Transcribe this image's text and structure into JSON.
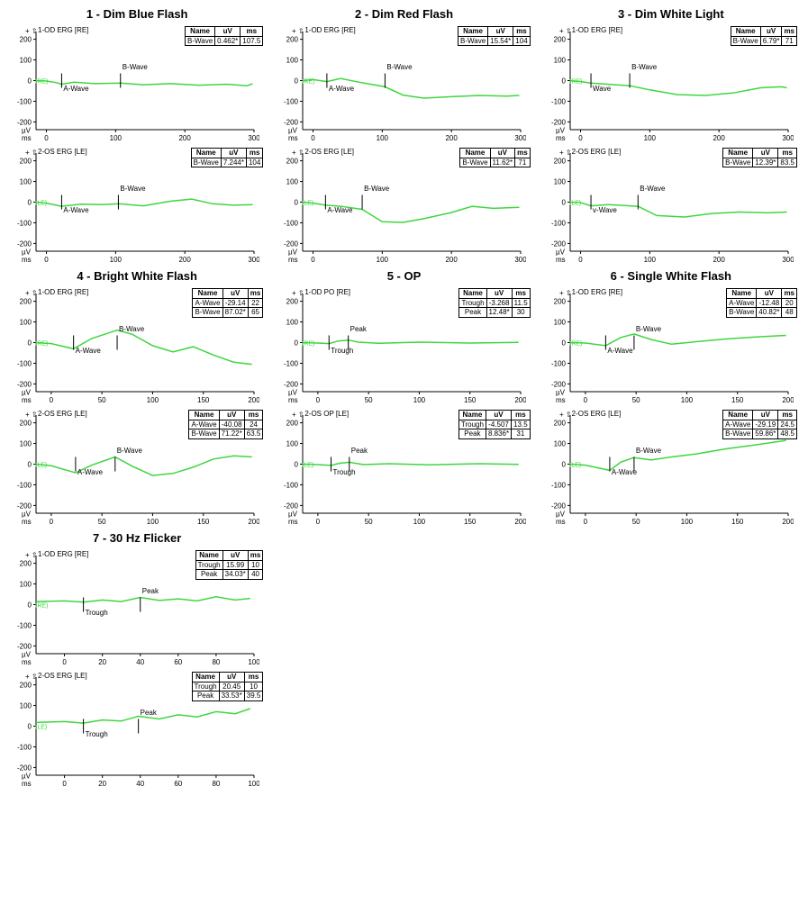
{
  "styling": {
    "waveform_color": "#3fd63f",
    "axis_color": "#000000",
    "background_color": "#ffffff",
    "title_fontsize": 13,
    "label_fontsize": 8,
    "legend_fontsize": 8,
    "line_width": 1.5
  },
  "y_axis": {
    "ticks": [
      200,
      100,
      0,
      -100,
      -200
    ],
    "unit": "µV"
  },
  "panels": [
    {
      "id": "p1",
      "title": "1 - Dim Blue Flash",
      "x_max": 300,
      "x_ticks": [
        0,
        100,
        200,
        300
      ],
      "charts": [
        {
          "label": "1-OD ERG [RE]",
          "side_label": "(RE)",
          "markers": [
            {
              "name": "A-Wave",
              "x": 22
            },
            {
              "name": "B-Wave",
              "x": 107
            }
          ],
          "legend": [
            [
              "B-Wave",
              "0.462*",
              "107.5"
            ]
          ],
          "wave": [
            [
              -15,
              0
            ],
            [
              0,
              -2
            ],
            [
              15,
              -10
            ],
            [
              22,
              -18
            ],
            [
              40,
              -8
            ],
            [
              70,
              -15
            ],
            [
              107,
              -12
            ],
            [
              140,
              -20
            ],
            [
              180,
              -15
            ],
            [
              220,
              -22
            ],
            [
              260,
              -18
            ],
            [
              290,
              -25
            ],
            [
              298,
              -15
            ]
          ]
        },
        {
          "label": "2-OS ERG [LE]",
          "side_label": "(LE)",
          "markers": [
            {
              "name": "A-Wave",
              "x": 22
            },
            {
              "name": "B-Wave",
              "x": 104
            }
          ],
          "legend": [
            [
              "B-Wave",
              "7.244*",
              "104"
            ]
          ],
          "wave": [
            [
              -15,
              0
            ],
            [
              0,
              -5
            ],
            [
              22,
              -20
            ],
            [
              50,
              -10
            ],
            [
              80,
              -12
            ],
            [
              104,
              -8
            ],
            [
              140,
              -18
            ],
            [
              180,
              5
            ],
            [
              210,
              15
            ],
            [
              240,
              -8
            ],
            [
              270,
              -15
            ],
            [
              298,
              -12
            ]
          ]
        }
      ]
    },
    {
      "id": "p2",
      "title": "2 - Dim Red Flash",
      "x_max": 300,
      "x_ticks": [
        0,
        100,
        200,
        300
      ],
      "charts": [
        {
          "label": "1-OD ERG [RE]",
          "side_label": "(RE)",
          "markers": [
            {
              "name": "A-Wave",
              "x": 20
            },
            {
              "name": "B-Wave",
              "x": 104
            }
          ],
          "legend": [
            [
              "B-Wave",
              "15.54*",
              "104"
            ]
          ],
          "wave": [
            [
              -15,
              0
            ],
            [
              0,
              5
            ],
            [
              20,
              -5
            ],
            [
              40,
              10
            ],
            [
              70,
              -10
            ],
            [
              104,
              -30
            ],
            [
              130,
              -70
            ],
            [
              160,
              -85
            ],
            [
              200,
              -78
            ],
            [
              240,
              -72
            ],
            [
              280,
              -75
            ],
            [
              298,
              -72
            ]
          ]
        },
        {
          "label": "2-OS ERG [LE]",
          "side_label": "(LE)",
          "markers": [
            {
              "name": "A-Wave",
              "x": 18
            },
            {
              "name": "B-Wave",
              "x": 71
            }
          ],
          "legend": [
            [
              "B-Wave",
              "11.62*",
              "71"
            ]
          ],
          "wave": [
            [
              -15,
              0
            ],
            [
              0,
              -5
            ],
            [
              18,
              -15
            ],
            [
              40,
              -20
            ],
            [
              71,
              -35
            ],
            [
              100,
              -95
            ],
            [
              130,
              -98
            ],
            [
              160,
              -80
            ],
            [
              200,
              -50
            ],
            [
              230,
              -20
            ],
            [
              260,
              -30
            ],
            [
              298,
              -25
            ]
          ]
        }
      ]
    },
    {
      "id": "p3",
      "title": "3 - Dim White Light",
      "x_max": 300,
      "x_ticks": [
        0,
        100,
        200,
        300
      ],
      "charts": [
        {
          "label": "1-OD ERG [RE]",
          "side_label": "(RE)",
          "markers": [
            {
              "name": "Wave",
              "x": 15
            },
            {
              "name": "B-Wave",
              "x": 71
            }
          ],
          "legend": [
            [
              "B-Wave",
              "6.79*",
              "71"
            ]
          ],
          "wave": [
            [
              -15,
              0
            ],
            [
              0,
              -5
            ],
            [
              15,
              -12
            ],
            [
              40,
              -18
            ],
            [
              71,
              -25
            ],
            [
              100,
              -45
            ],
            [
              140,
              -68
            ],
            [
              180,
              -72
            ],
            [
              220,
              -60
            ],
            [
              260,
              -35
            ],
            [
              290,
              -30
            ],
            [
              298,
              -35
            ]
          ]
        },
        {
          "label": "2-OS ERG [LE]",
          "side_label": "(LE)",
          "markers": [
            {
              "name": "v-Wave",
              "x": 15
            },
            {
              "name": "B-Wave",
              "x": 83
            }
          ],
          "legend": [
            [
              "B-Wave",
              "12.39*",
              "83.5"
            ]
          ],
          "wave": [
            [
              -15,
              0
            ],
            [
              0,
              -2
            ],
            [
              15,
              -18
            ],
            [
              40,
              -12
            ],
            [
              83,
              -20
            ],
            [
              110,
              -65
            ],
            [
              150,
              -72
            ],
            [
              190,
              -55
            ],
            [
              230,
              -48
            ],
            [
              270,
              -52
            ],
            [
              298,
              -48
            ]
          ]
        }
      ]
    },
    {
      "id": "p4",
      "title": "4 - Bright White Flash",
      "x_max": 200,
      "x_ticks": [
        0,
        50,
        100,
        150,
        200
      ],
      "charts": [
        {
          "label": "1-OD ERG [RE]",
          "side_label": "(RE)",
          "markers": [
            {
              "name": "A-Wave",
              "x": 22
            },
            {
              "name": "B-Wave",
              "x": 65
            }
          ],
          "legend": [
            [
              "A-Wave",
              "-29.14",
              "22"
            ],
            [
              "B-Wave",
              "87.02*",
              "65"
            ]
          ],
          "wave": [
            [
              -15,
              0
            ],
            [
              0,
              -5
            ],
            [
              22,
              -30
            ],
            [
              40,
              20
            ],
            [
              65,
              60
            ],
            [
              80,
              40
            ],
            [
              100,
              -15
            ],
            [
              120,
              -45
            ],
            [
              140,
              -20
            ],
            [
              160,
              -60
            ],
            [
              180,
              -95
            ],
            [
              198,
              -105
            ]
          ]
        },
        {
          "label": "2-OS ERG [LE]",
          "side_label": "(LE)",
          "markers": [
            {
              "name": "A-Wave",
              "x": 24
            },
            {
              "name": "B-Wave",
              "x": 63
            }
          ],
          "legend": [
            [
              "A-Wave",
              "-40.08",
              "24"
            ],
            [
              "B-Wave",
              "71.22*",
              "63.5"
            ]
          ],
          "wave": [
            [
              -15,
              0
            ],
            [
              0,
              -8
            ],
            [
              24,
              -42
            ],
            [
              40,
              -5
            ],
            [
              63,
              35
            ],
            [
              80,
              -10
            ],
            [
              100,
              -55
            ],
            [
              120,
              -45
            ],
            [
              140,
              -15
            ],
            [
              160,
              25
            ],
            [
              180,
              40
            ],
            [
              198,
              35
            ]
          ]
        }
      ]
    },
    {
      "id": "p5",
      "title": "5 - OP",
      "x_max": 200,
      "x_ticks": [
        0,
        50,
        100,
        150,
        200
      ],
      "charts": [
        {
          "label": "1-OD PO [RE]",
          "side_label": "(RE)",
          "markers": [
            {
              "name": "Trough",
              "x": 11
            },
            {
              "name": "Peak",
              "x": 30
            }
          ],
          "legend": [
            [
              "Trough",
              "-3.268",
              "11.5"
            ],
            [
              "Peak",
              "12.48*",
              "30"
            ]
          ],
          "wave": [
            [
              -15,
              0
            ],
            [
              0,
              -2
            ],
            [
              11,
              -5
            ],
            [
              20,
              8
            ],
            [
              30,
              12
            ],
            [
              40,
              2
            ],
            [
              60,
              -3
            ],
            [
              100,
              2
            ],
            [
              150,
              -2
            ],
            [
              198,
              1
            ]
          ]
        },
        {
          "label": "2-OS OP [LE]",
          "side_label": "(LE)",
          "markers": [
            {
              "name": "Trough",
              "x": 13
            },
            {
              "name": "Peak",
              "x": 31
            }
          ],
          "legend": [
            [
              "Trough",
              "-4.507",
              "13.5"
            ],
            [
              "Peak",
              "8.836*",
              "31"
            ]
          ],
          "wave": [
            [
              -15,
              0
            ],
            [
              0,
              -2
            ],
            [
              13,
              -6
            ],
            [
              22,
              5
            ],
            [
              31,
              9
            ],
            [
              45,
              -2
            ],
            [
              70,
              2
            ],
            [
              110,
              -3
            ],
            [
              160,
              2
            ],
            [
              198,
              -1
            ]
          ]
        }
      ]
    },
    {
      "id": "p6",
      "title": "6 - Single White Flash",
      "x_max": 200,
      "x_ticks": [
        0,
        50,
        100,
        150,
        200
      ],
      "charts": [
        {
          "label": "1-OD ERG [RE]",
          "side_label": "(RE)",
          "markers": [
            {
              "name": "A-Wave",
              "x": 20
            },
            {
              "name": "B-Wave",
              "x": 48
            }
          ],
          "legend": [
            [
              "A-Wave",
              "-12.48",
              "20"
            ],
            [
              "B-Wave",
              "40.82*",
              "48"
            ]
          ],
          "wave": [
            [
              -15,
              0
            ],
            [
              0,
              -2
            ],
            [
              20,
              -15
            ],
            [
              35,
              25
            ],
            [
              48,
              42
            ],
            [
              65,
              15
            ],
            [
              85,
              -8
            ],
            [
              110,
              5
            ],
            [
              140,
              18
            ],
            [
              170,
              28
            ],
            [
              198,
              35
            ]
          ]
        },
        {
          "label": "2-OS ERG [LE]",
          "side_label": "(LE)",
          "markers": [
            {
              "name": "A-Wave",
              "x": 24
            },
            {
              "name": "B-Wave",
              "x": 48
            }
          ],
          "legend": [
            [
              "A-Wave",
              "-29.19",
              "24.5"
            ],
            [
              "B-Wave",
              "59.86*",
              "48.5"
            ]
          ],
          "wave": [
            [
              -15,
              0
            ],
            [
              0,
              -5
            ],
            [
              24,
              -30
            ],
            [
              35,
              10
            ],
            [
              48,
              32
            ],
            [
              65,
              20
            ],
            [
              85,
              35
            ],
            [
              110,
              50
            ],
            [
              140,
              75
            ],
            [
              170,
              95
            ],
            [
              198,
              115
            ]
          ]
        }
      ]
    },
    {
      "id": "p7",
      "title": "7 - 30 Hz Flicker",
      "x_max": 100,
      "x_ticks": [
        0,
        20,
        40,
        60,
        80,
        100
      ],
      "charts": [
        {
          "label": "1-OD ERG [RE]",
          "side_label": "(RE)",
          "markers": [
            {
              "name": "Trough",
              "x": 10
            },
            {
              "name": "Peak",
              "x": 40
            }
          ],
          "legend": [
            [
              "Trough",
              "15.99",
              "10"
            ],
            [
              "Peak",
              "34.03*",
              "40"
            ]
          ],
          "wave": [
            [
              -15,
              15
            ],
            [
              0,
              18
            ],
            [
              10,
              12
            ],
            [
              20,
              22
            ],
            [
              30,
              15
            ],
            [
              40,
              35
            ],
            [
              50,
              20
            ],
            [
              60,
              28
            ],
            [
              70,
              18
            ],
            [
              80,
              38
            ],
            [
              90,
              22
            ],
            [
              98,
              30
            ]
          ]
        },
        {
          "label": "2-OS ERG [LE]",
          "side_label": "(LE)",
          "markers": [
            {
              "name": "Trough",
              "x": 10
            },
            {
              "name": "Peak",
              "x": 39
            }
          ],
          "legend": [
            [
              "Trough",
              "20.45",
              "10"
            ],
            [
              "Peak",
              "33.53*",
              "39.5"
            ]
          ],
          "wave": [
            [
              -15,
              18
            ],
            [
              0,
              22
            ],
            [
              10,
              15
            ],
            [
              20,
              30
            ],
            [
              30,
              25
            ],
            [
              39,
              48
            ],
            [
              50,
              35
            ],
            [
              60,
              55
            ],
            [
              70,
              45
            ],
            [
              80,
              70
            ],
            [
              90,
              60
            ],
            [
              98,
              85
            ]
          ]
        }
      ]
    }
  ],
  "legend_headers": [
    "Name",
    "uV",
    "ms"
  ],
  "x_unit": "ms"
}
